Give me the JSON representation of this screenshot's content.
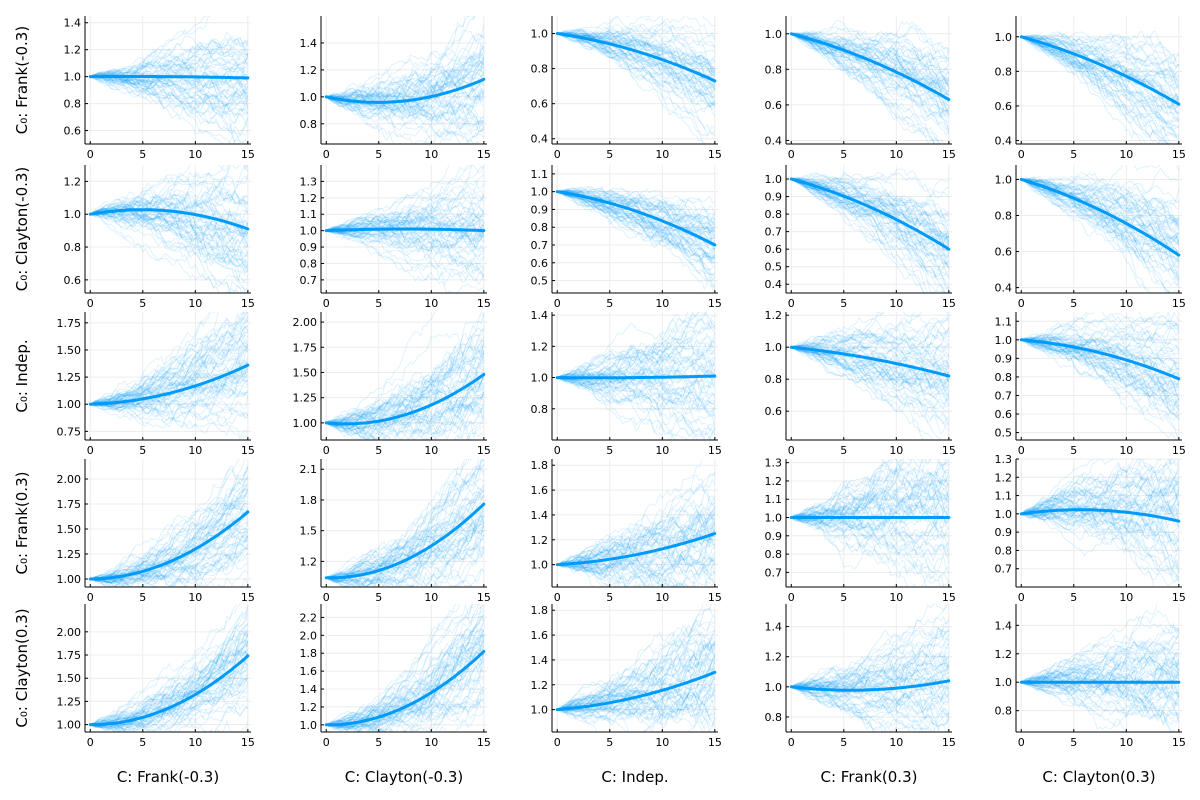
{
  "chart_data": {
    "type": "line",
    "description_colors": {
      "path": "#009af9",
      "mean": "#009af9",
      "axis": "#000000",
      "grid": "#ececec"
    },
    "column_labels": [
      "C: Frank(-0.3)",
      "C: Clayton(-0.3)",
      "C: Indep.",
      "C: Frank(0.3)",
      "C: Clayton(0.3)"
    ],
    "row_labels": [
      "C₀: Frank(-0.3)",
      "C₀: Clayton(-0.3)",
      "C₀: Indep.",
      "C₀: Frank(0.3)",
      "C₀: Clayton(0.3)"
    ],
    "x_ticks": [
      0,
      5,
      10,
      15
    ],
    "x_range": [
      -0.5,
      15.3
    ],
    "subplots": [
      [
        {
          "y_range": [
            0.5,
            1.45
          ],
          "y_ticks": [
            0.6,
            0.8,
            1.0,
            1.2,
            1.4
          ],
          "decimals": 1,
          "mean": [
            1.0,
            1.0,
            0.99
          ],
          "spread": 0.3
        },
        {
          "y_range": [
            0.65,
            1.6
          ],
          "y_ticks": [
            0.8,
            1.0,
            1.2,
            1.4
          ],
          "decimals": 1,
          "mean": [
            1.0,
            0.97,
            1.13
          ],
          "spread": 0.35
        },
        {
          "y_range": [
            0.37,
            1.1
          ],
          "y_ticks": [
            0.4,
            0.6,
            0.8,
            1.0
          ],
          "decimals": 1,
          "mean": [
            1.0,
            0.9,
            0.73
          ],
          "spread": 0.2
        },
        {
          "y_range": [
            0.38,
            1.1
          ],
          "y_ticks": [
            0.4,
            0.6,
            0.8,
            1.0
          ],
          "decimals": 1,
          "mean": [
            1.0,
            0.85,
            0.63
          ],
          "spread": 0.22
        },
        {
          "y_range": [
            0.38,
            1.12
          ],
          "y_ticks": [
            0.4,
            0.6,
            0.8,
            1.0
          ],
          "decimals": 1,
          "mean": [
            1.0,
            0.84,
            0.61
          ],
          "spread": 0.22
        }
      ],
      [
        {
          "y_range": [
            0.52,
            1.3
          ],
          "y_ticks": [
            0.6,
            0.8,
            1.0,
            1.2
          ],
          "decimals": 1,
          "mean": [
            1.0,
            1.02,
            0.91
          ],
          "spread": 0.28
        },
        {
          "y_range": [
            0.62,
            1.4
          ],
          "y_ticks": [
            0.7,
            0.8,
            0.9,
            1.0,
            1.1,
            1.2,
            1.3
          ],
          "decimals": 1,
          "mean": [
            1.0,
            1.01,
            1.0
          ],
          "spread": 0.25
        },
        {
          "y_range": [
            0.43,
            1.15
          ],
          "y_ticks": [
            0.5,
            0.6,
            0.7,
            0.8,
            0.9,
            1.0,
            1.1
          ],
          "decimals": 1,
          "mean": [
            1.0,
            0.89,
            0.7
          ],
          "spread": 0.2
        },
        {
          "y_range": [
            0.35,
            1.08
          ],
          "y_ticks": [
            0.4,
            0.5,
            0.6,
            0.7,
            0.8,
            0.9,
            1.0
          ],
          "decimals": 1,
          "mean": [
            1.0,
            0.84,
            0.6
          ],
          "spread": 0.22
        },
        {
          "y_range": [
            0.37,
            1.08
          ],
          "y_ticks": [
            0.4,
            0.6,
            0.8,
            1.0
          ],
          "decimals": 1,
          "mean": [
            1.0,
            0.83,
            0.58
          ],
          "spread": 0.22
        }
      ],
      [
        {
          "y_range": [
            0.67,
            1.85
          ],
          "y_ticks": [
            0.75,
            1.0,
            1.25,
            1.5,
            1.75
          ],
          "decimals": 2,
          "mean": [
            1.0,
            1.1,
            1.36
          ],
          "spread": 0.4
        },
        {
          "y_range": [
            0.83,
            2.1
          ],
          "y_ticks": [
            1.0,
            1.25,
            1.5,
            1.75,
            2.0
          ],
          "decimals": 2,
          "mean": [
            1.0,
            1.08,
            1.48
          ],
          "spread": 0.5
        },
        {
          "y_range": [
            0.6,
            1.42
          ],
          "y_ticks": [
            0.8,
            1.0,
            1.2,
            1.4
          ],
          "decimals": 1,
          "mean": [
            1.0,
            1.0,
            1.01
          ],
          "spread": 0.3
        },
        {
          "y_range": [
            0.42,
            1.22
          ],
          "y_ticks": [
            0.6,
            0.8,
            1.0,
            1.2
          ],
          "decimals": 1,
          "mean": [
            1.0,
            0.93,
            0.82
          ],
          "spread": 0.25
        },
        {
          "y_range": [
            0.46,
            1.15
          ],
          "y_ticks": [
            0.5,
            0.6,
            0.7,
            0.8,
            0.9,
            1.0,
            1.1
          ],
          "decimals": 1,
          "mean": [
            1.0,
            0.93,
            0.79
          ],
          "spread": 0.22
        }
      ],
      [
        {
          "y_range": [
            0.92,
            2.2
          ],
          "y_ticks": [
            1.0,
            1.25,
            1.5,
            1.75,
            2.0
          ],
          "decimals": 2,
          "mean": [
            1.0,
            1.17,
            1.67
          ],
          "spread": 0.4
        },
        {
          "y_range": [
            0.95,
            2.2
          ],
          "y_ticks": [
            1.2,
            1.5,
            1.8,
            2.1
          ],
          "decimals": 1,
          "mean": [
            1.04,
            1.21,
            1.76
          ],
          "spread": 0.45
        },
        {
          "y_range": [
            0.82,
            1.85
          ],
          "y_ticks": [
            1.0,
            1.2,
            1.4,
            1.6,
            1.8
          ],
          "decimals": 1,
          "mean": [
            1.0,
            1.08,
            1.25
          ],
          "spread": 0.4
        },
        {
          "y_range": [
            0.62,
            1.32
          ],
          "y_ticks": [
            0.7,
            0.8,
            0.9,
            1.0,
            1.1,
            1.2,
            1.3
          ],
          "decimals": 1,
          "mean": [
            1.0,
            1.0,
            1.0
          ],
          "spread": 0.3
        },
        {
          "y_range": [
            0.6,
            1.3
          ],
          "y_ticks": [
            0.7,
            0.8,
            0.9,
            1.0,
            1.1,
            1.2,
            1.3
          ],
          "decimals": 1,
          "mean": [
            1.0,
            1.02,
            0.96
          ],
          "spread": 0.28
        }
      ],
      [
        {
          "y_range": [
            0.92,
            2.3
          ],
          "y_ticks": [
            1.0,
            1.25,
            1.5,
            1.75,
            2.0
          ],
          "decimals": 2,
          "mean": [
            1.0,
            1.18,
            1.74
          ],
          "spread": 0.45
        },
        {
          "y_range": [
            0.92,
            2.35
          ],
          "y_ticks": [
            1.0,
            1.2,
            1.4,
            1.6,
            1.8,
            2.0,
            2.2
          ],
          "decimals": 1,
          "mean": [
            1.0,
            1.2,
            1.82
          ],
          "spread": 0.5
        },
        {
          "y_range": [
            0.82,
            1.85
          ],
          "y_ticks": [
            1.0,
            1.2,
            1.4,
            1.6,
            1.8
          ],
          "decimals": 1,
          "mean": [
            1.0,
            1.1,
            1.3
          ],
          "spread": 0.4
        },
        {
          "y_range": [
            0.7,
            1.55
          ],
          "y_ticks": [
            0.8,
            1.0,
            1.2,
            1.4
          ],
          "decimals": 1,
          "mean": [
            1.0,
            0.98,
            1.04
          ],
          "spread": 0.3
        },
        {
          "y_range": [
            0.65,
            1.55
          ],
          "y_ticks": [
            0.8,
            1.0,
            1.2,
            1.4
          ],
          "decimals": 1,
          "mean": [
            1.0,
            1.0,
            1.0
          ],
          "spread": 0.32
        }
      ]
    ]
  }
}
